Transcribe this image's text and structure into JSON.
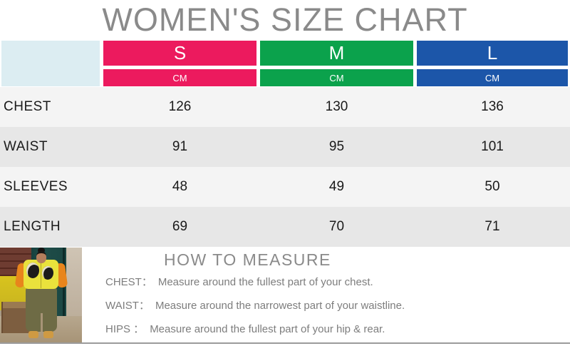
{
  "title": "WOMEN'S SIZE CHART",
  "size_table": {
    "columns": [
      {
        "size": "S",
        "unit": "CM"
      },
      {
        "size": "M",
        "unit": "CM"
      },
      {
        "size": "L",
        "unit": "CM"
      }
    ],
    "rows": [
      {
        "label": "CHEST",
        "values": [
          "126",
          "130",
          "136"
        ]
      },
      {
        "label": "WAIST",
        "values": [
          "91",
          "95",
          "101"
        ]
      },
      {
        "label": "SLEEVES",
        "values": [
          "48",
          "49",
          "50"
        ]
      },
      {
        "label": "LENGTH",
        "values": [
          "69",
          "70",
          "71"
        ]
      }
    ]
  },
  "how_to_measure": {
    "heading": "HOW TO MEASURE",
    "items": [
      {
        "label": "CHEST：",
        "text": "Measure around the fullest part of your chest."
      },
      {
        "label": "WAIST：",
        "text": "Measure around the narrowest part of your waistline."
      },
      {
        "label": "HIPS ：",
        "text": "Measure around the fullest part of your hip & rear."
      }
    ]
  },
  "photo": {
    "description": "model wearing yellow face-print hoodie with orange sleeves and olive pants"
  },
  "colors": {
    "size_s": "#ec1a5e",
    "size_m": "#0ba24c",
    "size_l": "#1c56a9",
    "corner_cell": "#dcedf2",
    "row_light": "#f4f4f4",
    "row_dark": "#e7e7e7",
    "heading_gray": "#8a8a8a",
    "body_gray": "#7d7d7d"
  }
}
